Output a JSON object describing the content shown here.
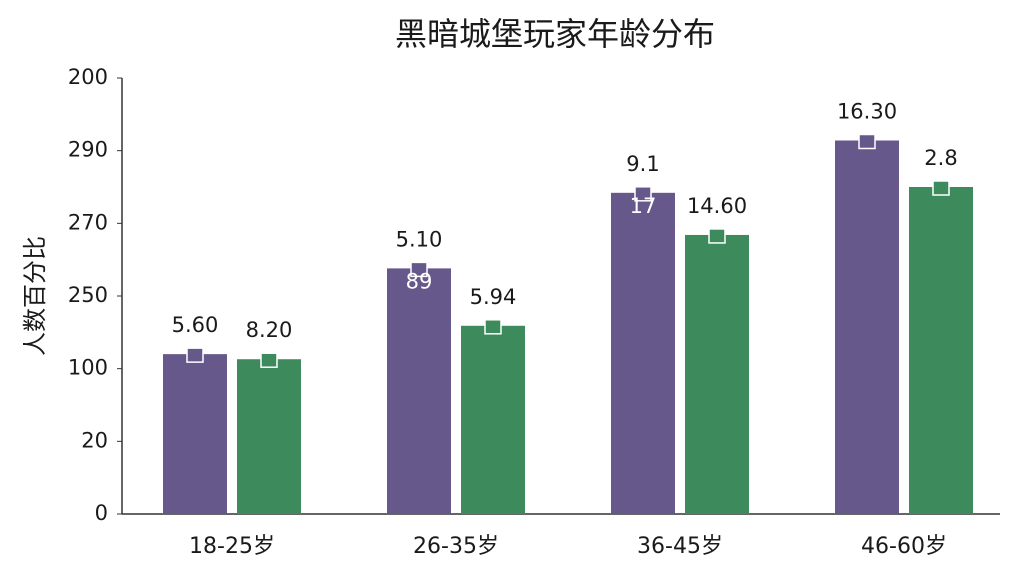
{
  "chart_data": {
    "type": "bar",
    "title": "黑暗城堡玩家年龄分布",
    "y_label": "人数百分比",
    "categories": [
      "18-25岁",
      "26-35岁",
      "36-45岁",
      "46-60岁"
    ],
    "series": [
      {
        "color": "#67588c",
        "values": [
          2.2,
          3.38,
          4.42,
          5.14
        ],
        "bar_labels": [
          "5.60",
          "5.10",
          "9.1",
          "16.30"
        ],
        "inner_labels": [
          null,
          "89",
          "17",
          null
        ]
      },
      {
        "color": "#3d8a5c",
        "values": [
          2.13,
          2.59,
          3.84,
          4.5
        ],
        "bar_labels": [
          "8.20",
          "5.94",
          "14.60",
          "2.8"
        ]
      }
    ],
    "ylim": [
      0,
      6
    ],
    "yticks": [
      0,
      {
        "value": 1,
        "label": "20"
      },
      {
        "value": 2,
        "label": "100"
      },
      {
        "value": 3,
        "label": "250"
      },
      {
        "value": 4,
        "label": "270"
      },
      {
        "value": 5,
        "label": "290"
      },
      {
        "value": 6,
        "label": "200"
      }
    ],
    "grid": false
  }
}
